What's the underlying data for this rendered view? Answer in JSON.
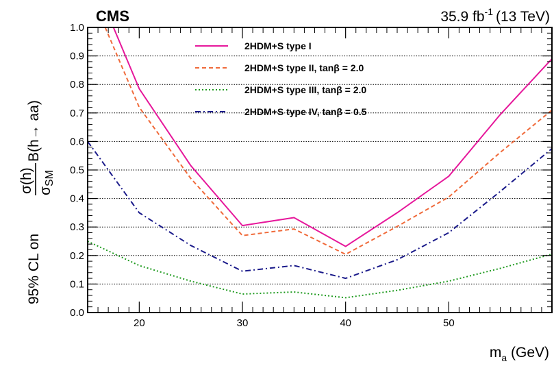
{
  "chart_data": {
    "type": "line",
    "experiment": "CMS",
    "luminosity": "35.9 fb",
    "luminosity_exponent": "-1",
    "energy": "(13 TeV)",
    "xlabel": {
      "main": "m",
      "sub": "a",
      "unit": " (GeV)"
    },
    "ylabel": {
      "prefix": "95% CL on ",
      "num": "σ(h)",
      "den": "σ",
      "den_sub": "SM",
      "suffix": "B(h→ aa)"
    },
    "xlim": [
      15,
      60
    ],
    "ylim": [
      0,
      1.0
    ],
    "x_ticks": [
      20,
      30,
      40,
      50
    ],
    "y_ticks": [
      "0.0",
      "0.1",
      "0.2",
      "0.3",
      "0.4",
      "0.5",
      "0.6",
      "0.7",
      "0.8",
      "0.9",
      "1.0"
    ],
    "grid": "horizontal",
    "legend_position": "top-center",
    "series": [
      {
        "name": "2HDM+S type I",
        "color": "#e6189b",
        "style": "solid",
        "points": [
          [
            17.5,
            1.0
          ],
          [
            20,
            0.785
          ],
          [
            25,
            0.515
          ],
          [
            30,
            0.305
          ],
          [
            35,
            0.333
          ],
          [
            40,
            0.232
          ],
          [
            45,
            0.35
          ],
          [
            50,
            0.478
          ],
          [
            55,
            0.695
          ],
          [
            60,
            0.89
          ]
        ]
      },
      {
        "name": "2HDM+S type II, tanβ = 2.0",
        "color": "#f06a3a",
        "style": "dashed",
        "points": [
          [
            16.7,
            1.0
          ],
          [
            20,
            0.72
          ],
          [
            25,
            0.47
          ],
          [
            30,
            0.27
          ],
          [
            35,
            0.293
          ],
          [
            40,
            0.204
          ],
          [
            45,
            0.302
          ],
          [
            50,
            0.405
          ],
          [
            55,
            0.562
          ],
          [
            60,
            0.71
          ]
        ]
      },
      {
        "name": "2HDM+S type III, tanβ = 2.0",
        "color": "#1e9a1e",
        "style": "dotted",
        "points": [
          [
            15,
            0.25
          ],
          [
            20,
            0.165
          ],
          [
            25,
            0.11
          ],
          [
            30,
            0.065
          ],
          [
            35,
            0.072
          ],
          [
            40,
            0.052
          ],
          [
            45,
            0.078
          ],
          [
            50,
            0.11
          ],
          [
            55,
            0.155
          ],
          [
            60,
            0.205
          ]
        ]
      },
      {
        "name": "2HDM+S type IV, tanβ = 0.5",
        "color": "#1a1a8a",
        "style": "dashdot",
        "points": [
          [
            15,
            0.6
          ],
          [
            20,
            0.35
          ],
          [
            25,
            0.235
          ],
          [
            30,
            0.145
          ],
          [
            35,
            0.165
          ],
          [
            40,
            0.12
          ],
          [
            45,
            0.185
          ],
          [
            50,
            0.28
          ],
          [
            55,
            0.425
          ],
          [
            60,
            0.575
          ]
        ]
      }
    ]
  }
}
